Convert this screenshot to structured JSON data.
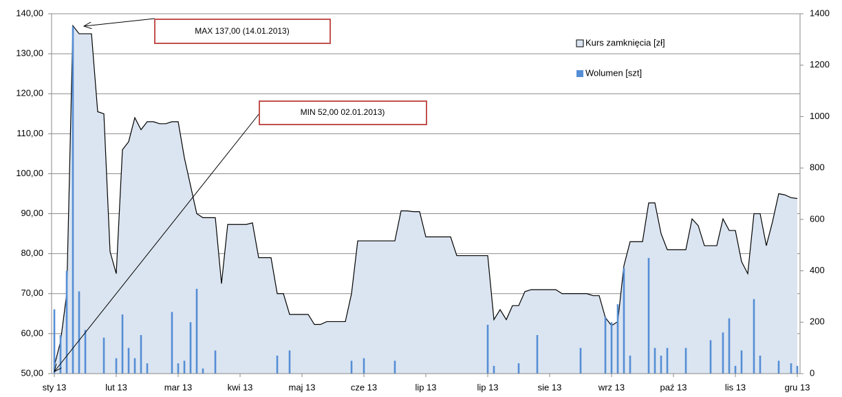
{
  "chart_data": {
    "type": "area-bar",
    "categories": [
      "sty 13",
      null,
      null,
      null,
      null,
      null,
      null,
      null,
      null,
      null,
      "lut 13",
      null,
      null,
      null,
      null,
      null,
      null,
      null,
      null,
      null,
      "mar 13",
      null,
      null,
      null,
      null,
      null,
      null,
      null,
      null,
      null,
      "kwi 13",
      null,
      null,
      null,
      null,
      null,
      null,
      null,
      null,
      null,
      "maj 13",
      null,
      null,
      null,
      null,
      null,
      null,
      null,
      null,
      null,
      "cze 13",
      null,
      null,
      null,
      null,
      null,
      null,
      null,
      null,
      null,
      "lip 13",
      null,
      null,
      null,
      null,
      null,
      null,
      null,
      null,
      null,
      "lip 13",
      null,
      null,
      null,
      null,
      null,
      null,
      null,
      null,
      null,
      "sie 13",
      null,
      null,
      null,
      null,
      null,
      null,
      null,
      null,
      null,
      "wrz 13",
      null,
      null,
      null,
      null,
      null,
      null,
      null,
      null,
      null,
      "paź 13",
      null,
      null,
      null,
      null,
      null,
      null,
      null,
      null,
      null,
      "lis 13",
      null,
      null,
      null,
      null,
      null,
      null,
      null,
      null,
      null,
      "gru 13"
    ],
    "series": [
      {
        "name": "Kurs zamknięcia [zł]",
        "type": "area",
        "color": "#dbe5f1",
        "line_color": "#000000",
        "values": [
          52,
          58,
          70,
          137,
          135,
          135,
          135,
          115.5,
          115,
          80.5,
          75,
          106,
          108,
          114,
          111,
          113,
          113,
          112.5,
          112.5,
          113,
          113,
          104,
          97,
          90,
          89,
          89,
          89,
          72.5,
          87.3,
          87.3,
          87.3,
          87.3,
          87.7,
          79,
          79,
          79,
          70,
          70,
          64.8,
          64.8,
          64.8,
          64.8,
          62.3,
          62.3,
          63,
          63,
          63,
          63,
          70,
          83.2,
          83.2,
          83.2,
          83.2,
          83.2,
          83.2,
          83.2,
          90.7,
          90.7,
          90.5,
          90.5,
          84.2,
          84.2,
          84.2,
          84.2,
          84.2,
          79.5,
          79.5,
          79.5,
          79.5,
          79.5,
          79.5,
          63.5,
          66,
          63.5,
          67,
          67,
          70.5,
          71,
          71,
          71,
          71,
          71,
          70,
          70,
          70,
          70,
          70,
          69.5,
          69.5,
          64,
          62,
          63,
          77,
          83,
          83,
          83,
          92.7,
          92.7,
          85,
          81,
          81,
          81,
          81,
          88.7,
          87,
          82,
          82,
          82,
          88.7,
          85.8,
          85.8,
          78,
          75,
          90,
          90,
          82,
          88,
          95,
          94.7,
          94,
          93.8
        ]
      },
      {
        "name": "Wolumen [szt]",
        "type": "bar",
        "axis": "y2",
        "color": "#558ed5",
        "values": [
          250,
          150,
          400,
          1350,
          320,
          170,
          null,
          null,
          140,
          null,
          60,
          230,
          100,
          60,
          150,
          40,
          null,
          null,
          null,
          240,
          40,
          50,
          200,
          330,
          20,
          null,
          90,
          null,
          null,
          null,
          null,
          null,
          null,
          null,
          null,
          null,
          70,
          null,
          90,
          null,
          null,
          null,
          null,
          null,
          null,
          null,
          null,
          null,
          50,
          null,
          60,
          null,
          null,
          null,
          null,
          50,
          null,
          null,
          null,
          null,
          null,
          null,
          null,
          null,
          null,
          null,
          null,
          null,
          null,
          null,
          190,
          30,
          null,
          null,
          null,
          40,
          null,
          null,
          150,
          null,
          null,
          null,
          null,
          null,
          null,
          100,
          null,
          null,
          null,
          220,
          200,
          270,
          410,
          70,
          null,
          null,
          450,
          100,
          70,
          100,
          null,
          null,
          100,
          null,
          null,
          null,
          130,
          null,
          160,
          215,
          30,
          90,
          null,
          290,
          70,
          null,
          null,
          50,
          null,
          40,
          30
        ]
      }
    ],
    "ylim": [
      50,
      140
    ],
    "yticks": [
      {
        "value": 50,
        "label": "50,00"
      },
      {
        "value": 60,
        "label": "60,00"
      },
      {
        "value": 70,
        "label": "70,00"
      },
      {
        "value": 80,
        "label": "80,00"
      },
      {
        "value": 90,
        "label": "90,00"
      },
      {
        "value": 100,
        "label": "100,00"
      },
      {
        "value": 110,
        "label": "110,00"
      },
      {
        "value": 120,
        "label": "120,00"
      },
      {
        "value": 130,
        "label": "130,00"
      },
      {
        "value": 140,
        "label": "140,00"
      }
    ],
    "y2lim": [
      0,
      1400
    ],
    "y2ticks": [
      0,
      200,
      400,
      600,
      800,
      1000,
      1200,
      1400
    ],
    "grid": true,
    "legend": "upper right",
    "annotations": [
      "MAX 137,00  (14.01.2013)",
      "MIN 52,00  02.01.2013)"
    ]
  }
}
